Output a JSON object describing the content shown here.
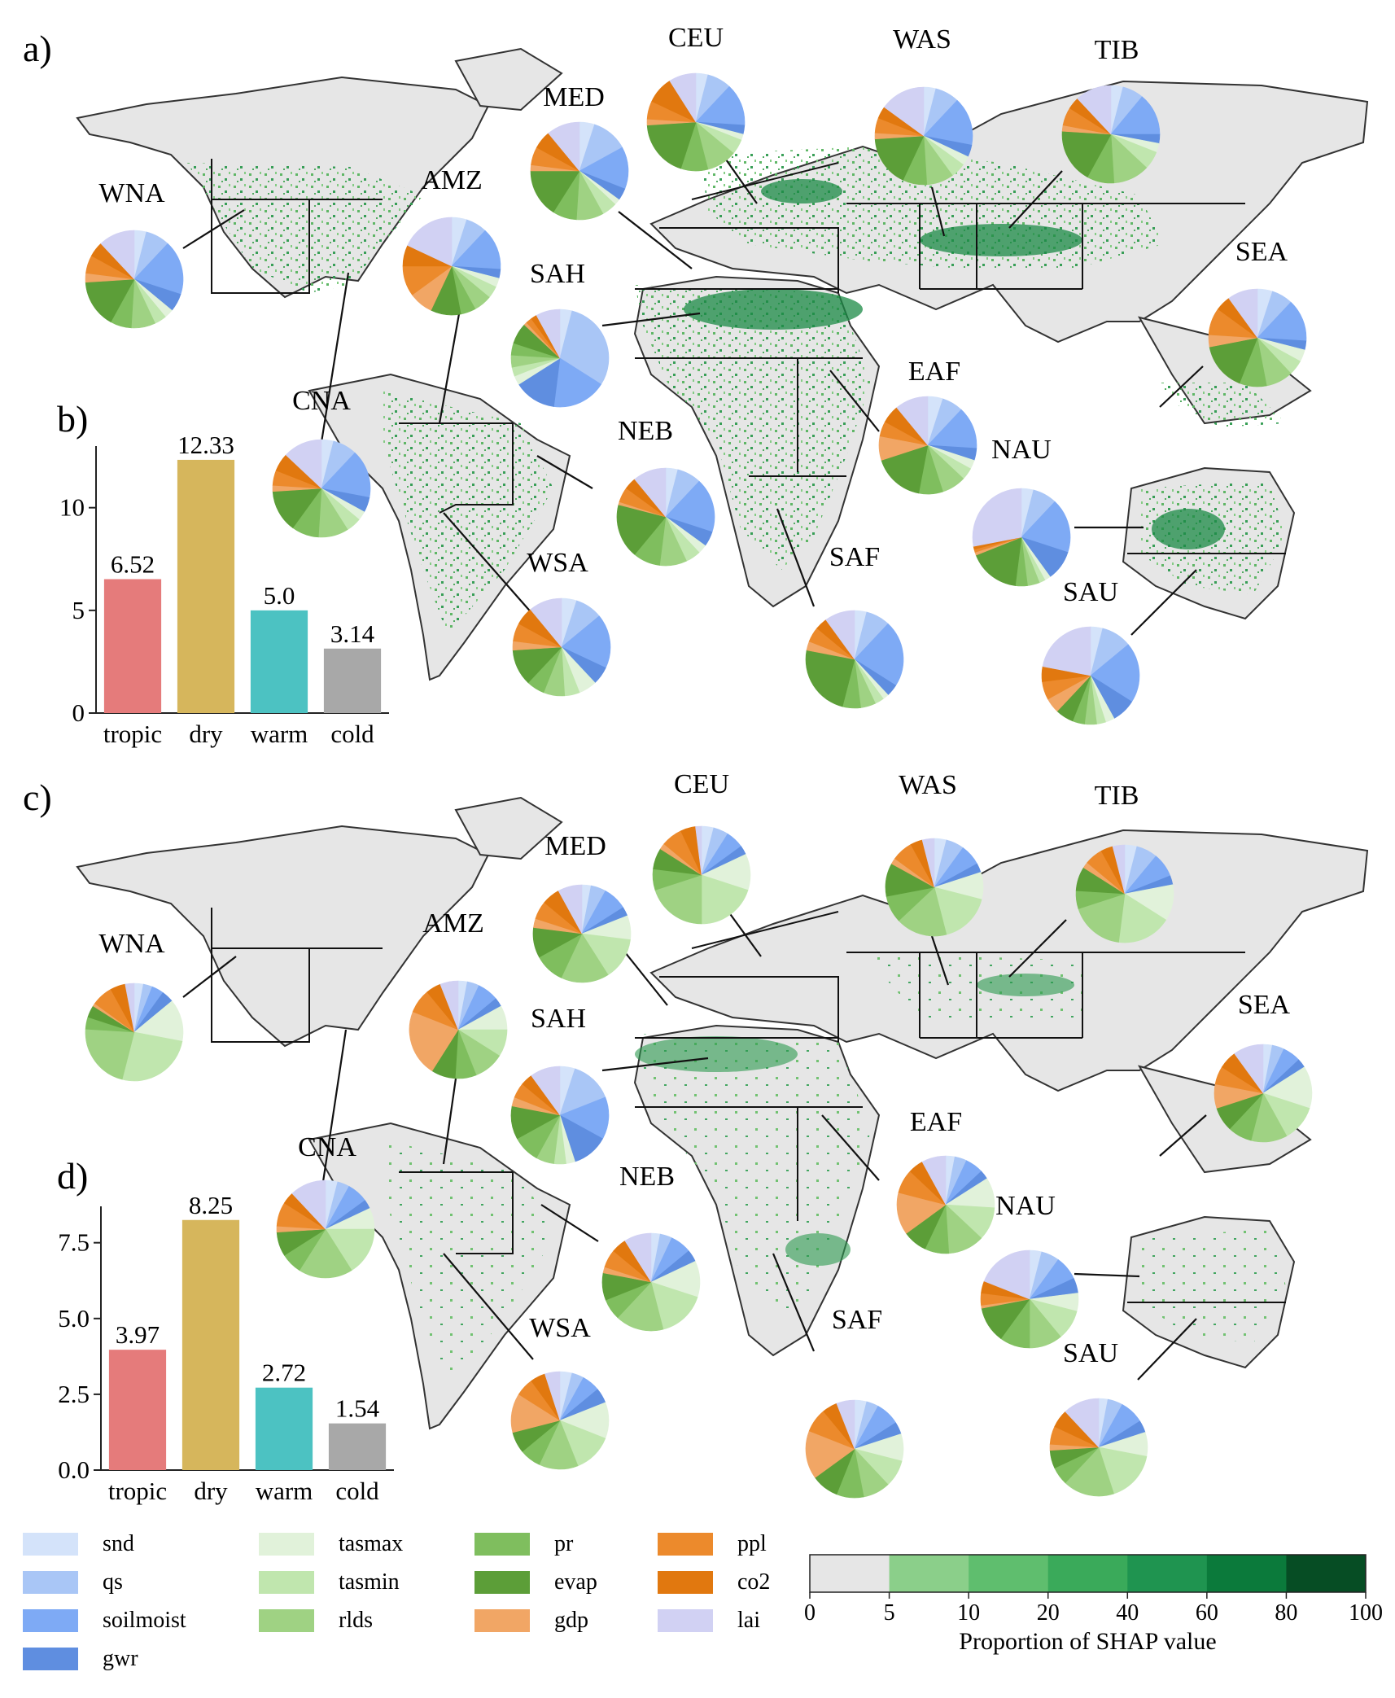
{
  "panel_labels": [
    "a)",
    "b)",
    "c)",
    "d)"
  ],
  "colors": {
    "snd": "#d4e3fa",
    "qs": "#a9c6f6",
    "soilmoist": "#7eaaf5",
    "gwr": "#5f8ee0",
    "tasmax": "#e1f2da",
    "tasmin": "#c0e6ae",
    "rlds": "#9fd283",
    "pr": "#7fbe5e",
    "evap": "#5c9e38",
    "gdp": "#f1a665",
    "ppl": "#ec8a2c",
    "co2": "#e1780f",
    "lai": "#d1d1f3",
    "land": "#e6e6e6",
    "coast": "#333333",
    "bar_tropic": "#e57b7b",
    "bar_dry": "#d6b65c",
    "bar_warm": "#4cc2c2",
    "bar_cold": "#a8a8a8"
  },
  "legend": {
    "items": [
      {
        "key": "snd",
        "label": "snd"
      },
      {
        "key": "qs",
        "label": "qs"
      },
      {
        "key": "soilmoist",
        "label": "soilmoist"
      },
      {
        "key": "gwr",
        "label": "gwr"
      },
      {
        "key": "tasmax",
        "label": "tasmax"
      },
      {
        "key": "tasmin",
        "label": "tasmin"
      },
      {
        "key": "rlds",
        "label": "rlds"
      },
      {
        "key": "pr",
        "label": "pr"
      },
      {
        "key": "evap",
        "label": "evap"
      },
      {
        "key": "gdp",
        "label": "gdp"
      },
      {
        "key": "ppl",
        "label": "ppl"
      },
      {
        "key": "co2",
        "label": "co2"
      },
      {
        "key": "lai",
        "label": "lai"
      }
    ]
  },
  "colorbar": {
    "title": "Proportion of SHAP value",
    "ticks": [
      "0",
      "5",
      "10",
      "20",
      "40",
      "60",
      "80",
      "100"
    ],
    "colors": [
      "#e6e6e6",
      "#8bcf8a",
      "#5fbe6e",
      "#3aaa5a",
      "#1f9450",
      "#0b7a3b",
      "#064d24"
    ]
  },
  "chart_data": [
    {
      "type": "bar",
      "panel": "b)",
      "categories": [
        "tropic",
        "dry",
        "warm",
        "cold"
      ],
      "values": [
        6.52,
        12.33,
        5.0,
        3.14
      ],
      "value_labels": [
        "6.52",
        "12.33",
        "5.0",
        "3.14"
      ],
      "yticks": [
        "0",
        "5",
        "10"
      ],
      "ytick_values": [
        0,
        5,
        10
      ],
      "ylim": [
        0,
        13
      ]
    },
    {
      "type": "bar",
      "panel": "d)",
      "categories": [
        "tropic",
        "dry",
        "warm",
        "cold"
      ],
      "values": [
        3.97,
        8.25,
        2.72,
        1.54
      ],
      "value_labels": [
        "3.97",
        "8.25",
        "2.72",
        "1.54"
      ],
      "yticks": [
        "0.0",
        "2.5",
        "5.0",
        "7.5"
      ],
      "ytick_values": [
        0,
        2.5,
        5,
        7.5
      ],
      "ylim": [
        0,
        8.7
      ]
    },
    {
      "type": "pie",
      "panel": "a)",
      "order": [
        "snd",
        "qs",
        "soilmoist",
        "gwr",
        "tasmax",
        "tasmin",
        "rlds",
        "pr",
        "evap",
        "gdp",
        "ppl",
        "co2",
        "lai"
      ],
      "regions": [
        {
          "name": "WNA",
          "values": [
            4,
            8,
            18,
            6,
            3,
            4,
            8,
            7,
            16,
            3,
            6,
            5,
            12
          ]
        },
        {
          "name": "CNA",
          "values": [
            4,
            8,
            16,
            5,
            3,
            5,
            10,
            9,
            14,
            2,
            5,
            6,
            13
          ]
        },
        {
          "name": "AMZ",
          "values": [
            5,
            7,
            14,
            3,
            3,
            4,
            6,
            5,
            10,
            8,
            10,
            7,
            18
          ]
        },
        {
          "name": "MED",
          "values": [
            5,
            12,
            14,
            4,
            2,
            5,
            9,
            8,
            16,
            2,
            6,
            6,
            11
          ]
        },
        {
          "name": "CEU",
          "values": [
            4,
            8,
            14,
            3,
            2,
            5,
            10,
            9,
            19,
            2,
            6,
            9,
            9
          ]
        },
        {
          "name": "WAS",
          "values": [
            4,
            8,
            16,
            4,
            3,
            5,
            9,
            8,
            17,
            2,
            5,
            4,
            15
          ]
        },
        {
          "name": "TIB",
          "values": [
            4,
            7,
            14,
            3,
            3,
            6,
            12,
            9,
            18,
            2,
            6,
            4,
            12
          ]
        },
        {
          "name": "SAH",
          "values": [
            4,
            30,
            18,
            14,
            3,
            3,
            4,
            4,
            7,
            1,
            2,
            2,
            8
          ]
        },
        {
          "name": "EAF",
          "values": [
            5,
            7,
            14,
            4,
            3,
            4,
            8,
            8,
            17,
            8,
            5,
            6,
            11
          ]
        },
        {
          "name": "NEB",
          "values": [
            4,
            8,
            18,
            5,
            3,
            5,
            9,
            9,
            18,
            1,
            5,
            4,
            11
          ]
        },
        {
          "name": "WSA",
          "values": [
            5,
            9,
            18,
            6,
            6,
            5,
            7,
            6,
            12,
            3,
            6,
            6,
            11
          ]
        },
        {
          "name": "SAF",
          "values": [
            4,
            8,
            22,
            4,
            2,
            3,
            5,
            6,
            24,
            3,
            5,
            4,
            10
          ]
        },
        {
          "name": "SEA",
          "values": [
            5,
            7,
            14,
            3,
            4,
            5,
            9,
            9,
            16,
            4,
            9,
            5,
            10
          ]
        },
        {
          "name": "NAU",
          "values": [
            4,
            8,
            18,
            10,
            2,
            2,
            4,
            4,
            17,
            1,
            1,
            1,
            28
          ]
        },
        {
          "name": "SAU",
          "values": [
            4,
            10,
            20,
            8,
            3,
            3,
            4,
            4,
            6,
            5,
            6,
            5,
            22
          ]
        }
      ]
    },
    {
      "type": "pie",
      "panel": "c)",
      "order": [
        "snd",
        "qs",
        "soilmoist",
        "gwr",
        "tasmax",
        "tasmin",
        "rlds",
        "pr",
        "evap",
        "gdp",
        "ppl",
        "co2",
        "lai"
      ],
      "regions": [
        {
          "name": "WNA",
          "values": [
            3,
            3,
            4,
            4,
            14,
            26,
            22,
            4,
            4,
            1,
            7,
            5,
            3
          ]
        },
        {
          "name": "CNA",
          "values": [
            4,
            4,
            7,
            3,
            7,
            16,
            18,
            7,
            8,
            2,
            8,
            4,
            12
          ]
        },
        {
          "name": "AMZ",
          "values": [
            3,
            4,
            7,
            3,
            8,
            9,
            10,
            7,
            8,
            22,
            8,
            5,
            6
          ]
        },
        {
          "name": "MED",
          "values": [
            3,
            5,
            8,
            3,
            8,
            14,
            16,
            10,
            10,
            3,
            6,
            6,
            8
          ]
        },
        {
          "name": "CEU",
          "values": [
            4,
            5,
            6,
            3,
            12,
            20,
            20,
            7,
            7,
            2,
            7,
            5,
            2
          ]
        },
        {
          "name": "WAS",
          "values": [
            4,
            6,
            7,
            3,
            9,
            17,
            17,
            9,
            11,
            2,
            7,
            4,
            4
          ]
        },
        {
          "name": "TIB",
          "values": [
            4,
            7,
            8,
            3,
            12,
            18,
            18,
            6,
            8,
            2,
            6,
            4,
            4
          ]
        },
        {
          "name": "SAH",
          "values": [
            5,
            14,
            14,
            12,
            3,
            4,
            6,
            9,
            11,
            3,
            5,
            4,
            10
          ]
        },
        {
          "name": "EAF",
          "values": [
            3,
            4,
            6,
            3,
            10,
            11,
            12,
            8,
            8,
            14,
            8,
            5,
            8
          ]
        },
        {
          "name": "NEB",
          "values": [
            3,
            4,
            7,
            4,
            12,
            16,
            16,
            7,
            9,
            2,
            6,
            5,
            9
          ]
        },
        {
          "name": "WSA",
          "values": [
            4,
            4,
            6,
            5,
            12,
            13,
            13,
            7,
            7,
            13,
            6,
            5,
            5
          ]
        },
        {
          "name": "SAF",
          "values": [
            4,
            4,
            8,
            4,
            9,
            9,
            9,
            9,
            9,
            16,
            8,
            5,
            6
          ]
        },
        {
          "name": "SEA",
          "values": [
            3,
            4,
            6,
            3,
            14,
            12,
            12,
            8,
            8,
            8,
            6,
            6,
            10
          ]
        },
        {
          "name": "NAU",
          "values": [
            4,
            6,
            8,
            5,
            6,
            10,
            11,
            10,
            12,
            1,
            4,
            4,
            19
          ]
        },
        {
          "name": "SAU",
          "values": [
            3,
            5,
            8,
            4,
            8,
            17,
            17,
            6,
            6,
            2,
            6,
            6,
            12
          ]
        }
      ]
    }
  ]
}
